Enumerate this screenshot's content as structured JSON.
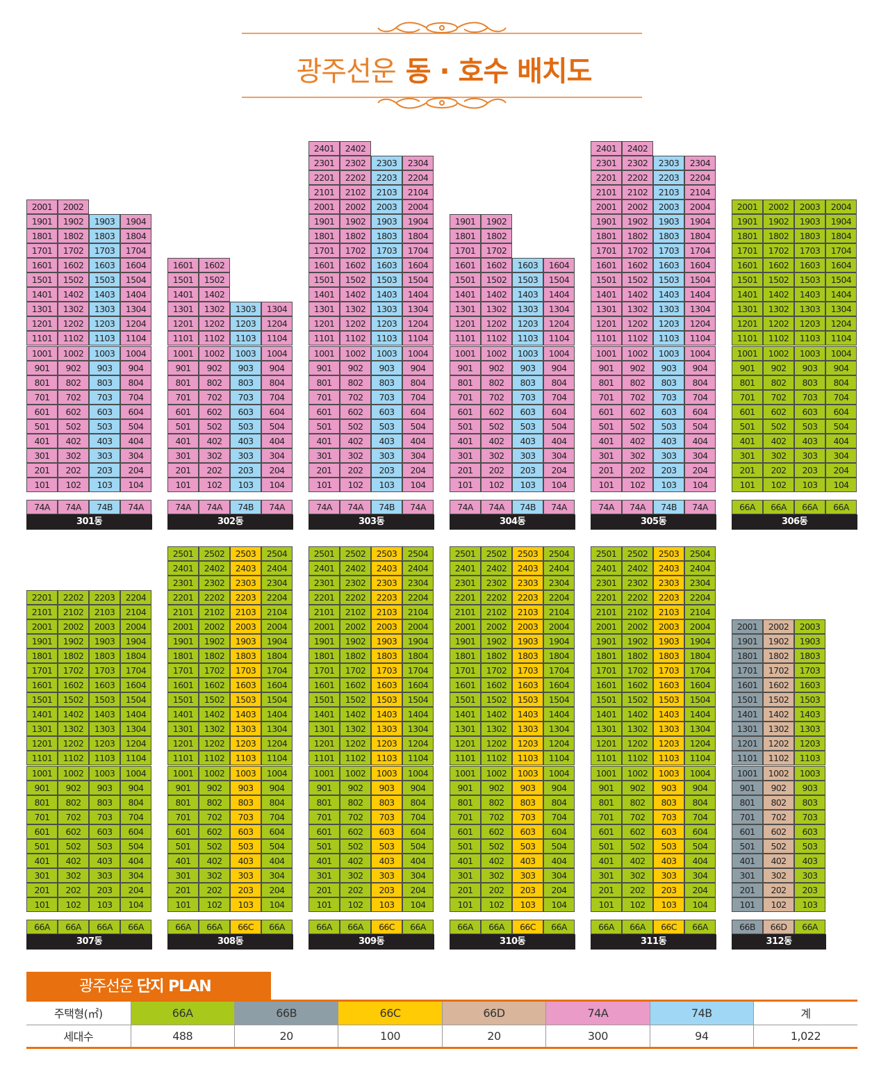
{
  "header": {
    "title_light": "광주선운",
    "title_bold": "동 · 호수 배치도"
  },
  "colors": {
    "74A": "#ea9bc7",
    "74B": "#9fd7f4",
    "66A": "#a8c91b",
    "66B": "#8e9ea7",
    "66C": "#ffcb05",
    "66D": "#d8b59b",
    "plan_accent": "#e8700f",
    "label_bg": "#231f20"
  },
  "buildings": [
    {
      "name": "301동",
      "floors": 20,
      "cols": [
        {
          "type": "74A",
          "floors": 20
        },
        {
          "type": "74A",
          "floors": 20
        },
        {
          "type": "74B",
          "floors": 19
        },
        {
          "type": "74A",
          "floors": 19
        }
      ]
    },
    {
      "name": "302동",
      "floors": 16,
      "cols": [
        {
          "type": "74A",
          "floors": 16
        },
        {
          "type": "74A",
          "floors": 16
        },
        {
          "type": "74B",
          "floors": 13
        },
        {
          "type": "74A",
          "floors": 13
        }
      ]
    },
    {
      "name": "303동",
      "floors": 24,
      "cols": [
        {
          "type": "74A",
          "floors": 24
        },
        {
          "type": "74A",
          "floors": 24
        },
        {
          "type": "74B",
          "floors": 23
        },
        {
          "type": "74A",
          "floors": 23
        }
      ]
    },
    {
      "name": "304동",
      "floors": 19,
      "cols": [
        {
          "type": "74A",
          "floors": 19
        },
        {
          "type": "74A",
          "floors": 19
        },
        {
          "type": "74B",
          "floors": 16
        },
        {
          "type": "74A",
          "floors": 16
        }
      ]
    },
    {
      "name": "305동",
      "floors": 24,
      "cols": [
        {
          "type": "74A",
          "floors": 24
        },
        {
          "type": "74A",
          "floors": 24
        },
        {
          "type": "74B",
          "floors": 23
        },
        {
          "type": "74A",
          "floors": 23
        }
      ]
    },
    {
      "name": "306동",
      "floors": 20,
      "cols": [
        {
          "type": "66A",
          "floors": 20
        },
        {
          "type": "66A",
          "floors": 20
        },
        {
          "type": "66A",
          "floors": 20
        },
        {
          "type": "66A",
          "floors": 20
        }
      ]
    },
    {
      "name": "307동",
      "floors": 22,
      "cols": [
        {
          "type": "66A",
          "floors": 22
        },
        {
          "type": "66A",
          "floors": 22
        },
        {
          "type": "66A",
          "floors": 22
        },
        {
          "type": "66A",
          "floors": 22
        }
      ]
    },
    {
      "name": "308동",
      "floors": 25,
      "cols": [
        {
          "type": "66A",
          "floors": 25
        },
        {
          "type": "66A",
          "floors": 25
        },
        {
          "type": "66C",
          "floors": 25
        },
        {
          "type": "66A",
          "floors": 25
        }
      ]
    },
    {
      "name": "309동",
      "floors": 25,
      "cols": [
        {
          "type": "66A",
          "floors": 25
        },
        {
          "type": "66A",
          "floors": 25
        },
        {
          "type": "66C",
          "floors": 25
        },
        {
          "type": "66A",
          "floors": 25
        }
      ]
    },
    {
      "name": "310동",
      "floors": 25,
      "cols": [
        {
          "type": "66A",
          "floors": 25
        },
        {
          "type": "66A",
          "floors": 25
        },
        {
          "type": "66C",
          "floors": 25
        },
        {
          "type": "66A",
          "floors": 25
        }
      ]
    },
    {
      "name": "311동",
      "floors": 25,
      "cols": [
        {
          "type": "66A",
          "floors": 25
        },
        {
          "type": "66A",
          "floors": 25
        },
        {
          "type": "66C",
          "floors": 25
        },
        {
          "type": "66A",
          "floors": 25
        }
      ]
    },
    {
      "name": "312동",
      "floors": 20,
      "cols": [
        {
          "type": "66B",
          "floors": 20
        },
        {
          "type": "66D",
          "floors": 20
        },
        {
          "type": "66A",
          "floors": 20
        }
      ]
    }
  ],
  "plan": {
    "title_light": "광주선운",
    "title_bold": "단지 PLAN",
    "headers": [
      "주택형(㎡)",
      "66A",
      "66B",
      "66C",
      "66D",
      "74A",
      "74B",
      "계"
    ],
    "row_label": "세대수",
    "values": [
      "488",
      "20",
      "100",
      "20",
      "300",
      "94",
      "1,022"
    ]
  }
}
